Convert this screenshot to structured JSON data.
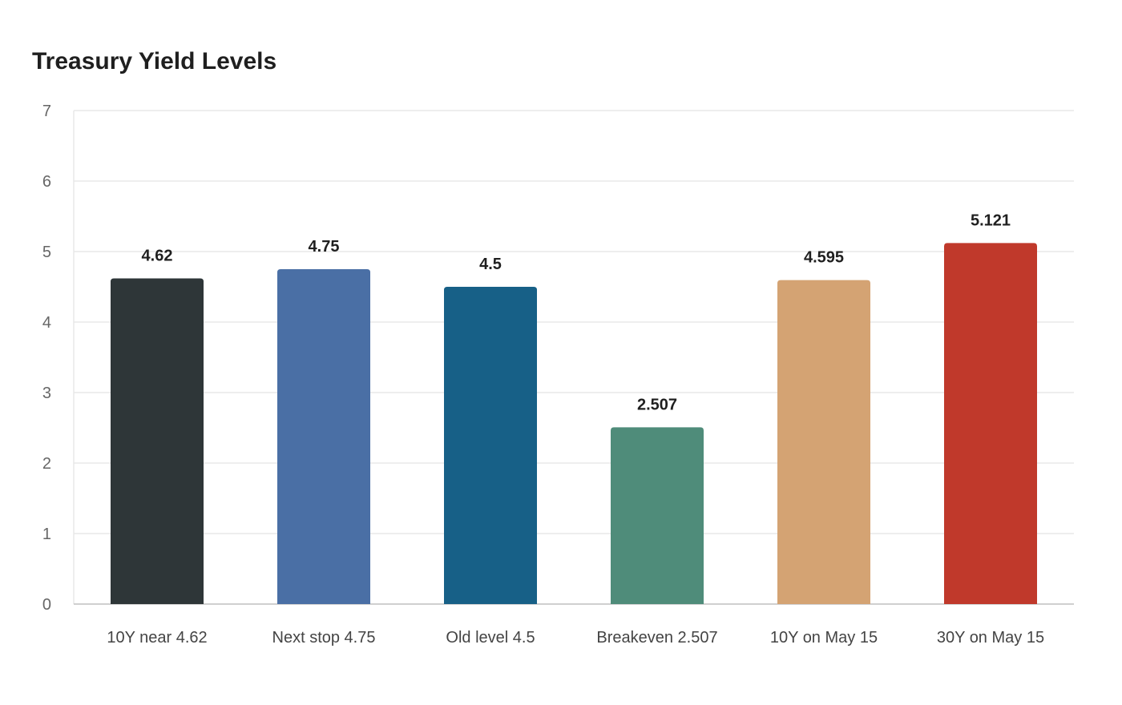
{
  "chart_data": {
    "type": "bar",
    "title": "Treasury Yield Levels",
    "xlabel": "",
    "ylabel": "",
    "categories": [
      "10Y near 4.62",
      "Next stop 4.75",
      "Old level 4.5",
      "Breakeven 2.507",
      "10Y on May 15",
      "30Y on May 15"
    ],
    "values": [
      4.62,
      4.75,
      4.5,
      2.507,
      4.595,
      5.121
    ],
    "value_labels": [
      "4.62",
      "4.75",
      "4.5",
      "2.507",
      "4.595",
      "5.121"
    ],
    "colors": [
      "#2e3638",
      "#4a6fa5",
      "#176087",
      "#4f8c7a",
      "#d4a373",
      "#c0392b"
    ],
    "ylim": [
      0,
      7
    ],
    "yticks": [
      "0",
      "1",
      "2",
      "3",
      "4",
      "5",
      "6",
      "7"
    ],
    "grid": true,
    "legend": "none"
  }
}
